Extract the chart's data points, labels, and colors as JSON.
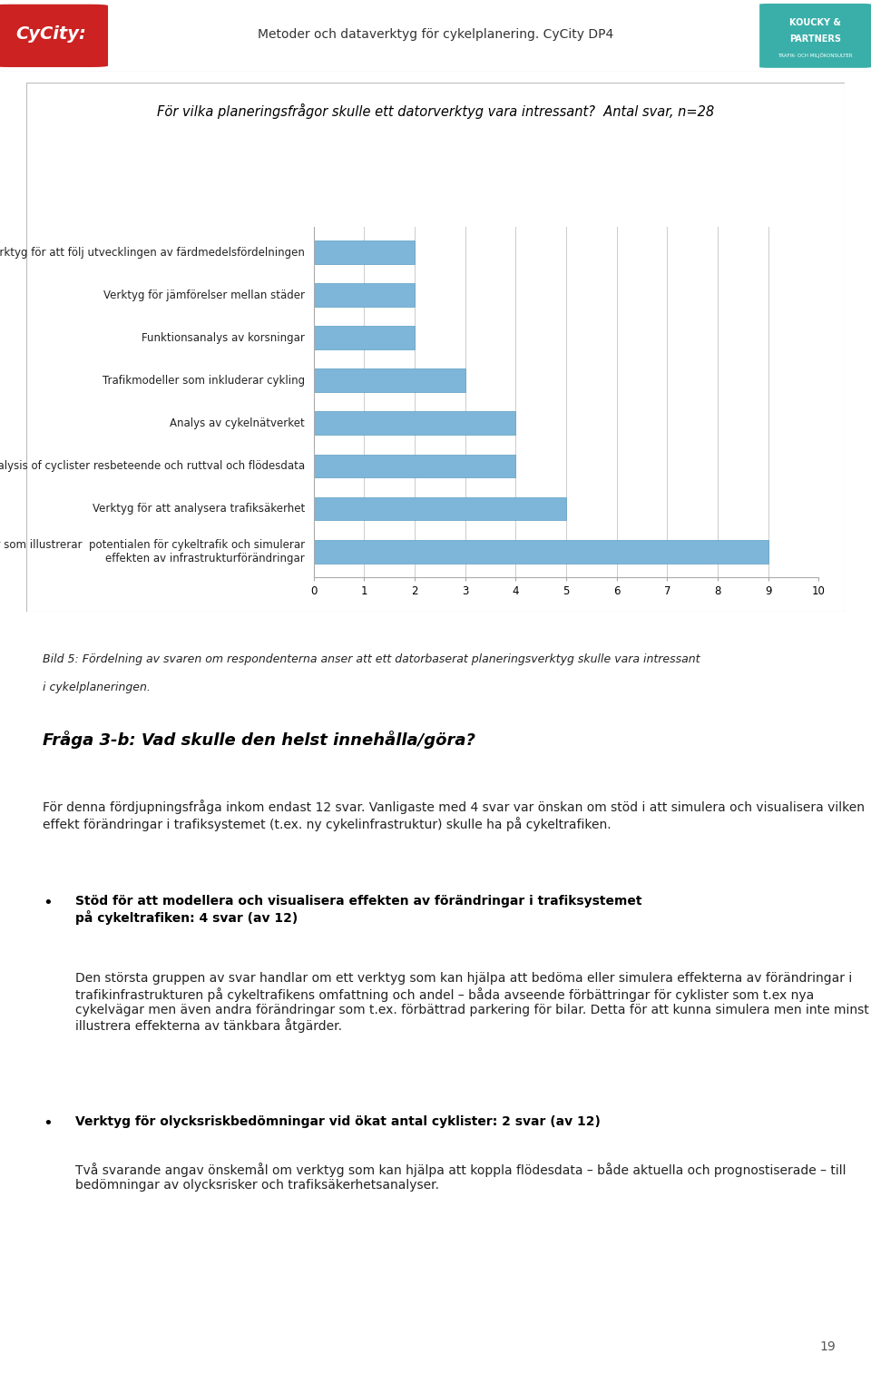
{
  "header_title": "Metoder och dataverktyg för cykelplanering. CyCity DP4",
  "chart_title": "För vilka planeringsfrågor skulle ett datorverktyg vara intressant?  Antal svar, n=28",
  "categories": [
    "Verktyg för att följ utvecklingen av färdmedelsfördelningen",
    "Verktyg för jämförelser mellan städer",
    "Funktionsanalys av korsningar",
    "Trafikmodeller som inkluderar cykling",
    "Analys av cykelnätverket",
    "Analysis of cyclister resbeteende och ruttval och flödesdata",
    "Verktyg för att analysera trafiksäkerhet",
    "Trafikmodeller som illustrerar  potentialen för cykeltrafik och simulerar\neffekten av infrastrukturförändringar"
  ],
  "values": [
    2,
    2,
    2,
    3,
    4,
    4,
    5,
    9
  ],
  "bar_color": "#7EB6D9",
  "bar_edge_color": "#5A9EC0",
  "xlim": [
    0,
    10
  ],
  "xticks": [
    0,
    1,
    2,
    3,
    4,
    5,
    6,
    7,
    8,
    9,
    10
  ],
  "grid_color": "#CCCCCC",
  "page_number": "19",
  "caption_line1": "Bild 5: Fördelning av svaren om respondenterna anser att ett datorbaserat planeringsverktyg skulle vara intressant",
  "caption_line2": "i cykelplaneringen.",
  "section_title": "Fråga 3-b: Vad skulle den helst innehålla/göra?",
  "body_text_1": "För denna fördjupningsfråga inkom endast 12 svar. Vanligaste med 4 svar var önskan om stöd i att simulera och visualisera vilken effekt förändringar i trafiksystemet (t.ex. ny cykelinfrastruktur) skulle ha på cykeltrafiken.",
  "bullet1_title": "Stöd för att modellera och visualisera effekten av förändringar i trafiksystemet\npå cykeltrafiken: 4 svar (av 12)",
  "bullet1_body": "Den största gruppen av svar handlar om ett verktyg som kan hjälpa att bedöma eller simulera effekterna av förändringar i trafikinfrastrukturen på cykeltrafikens omfattning och andel – båda avseende förbättringar för cyklister som t.ex nya cykelvägar men även andra förändringar som t.ex. förbättrad parkering för bilar. Detta för att kunna simulera men inte minst illustrera effekterna av tänkbara åtgärder.",
  "bullet2_title": "Verktyg för olycksriskbedömningar vid ökat antal cyklister: 2 svar (av 12)",
  "bullet2_body": "Två svarande angav önskemål om verktyg som kan hjälpa att koppla flödesdata – både aktuella och prognostiserade – till bedömningar av olycksrisker och trafiksäkerhetsanalyser."
}
